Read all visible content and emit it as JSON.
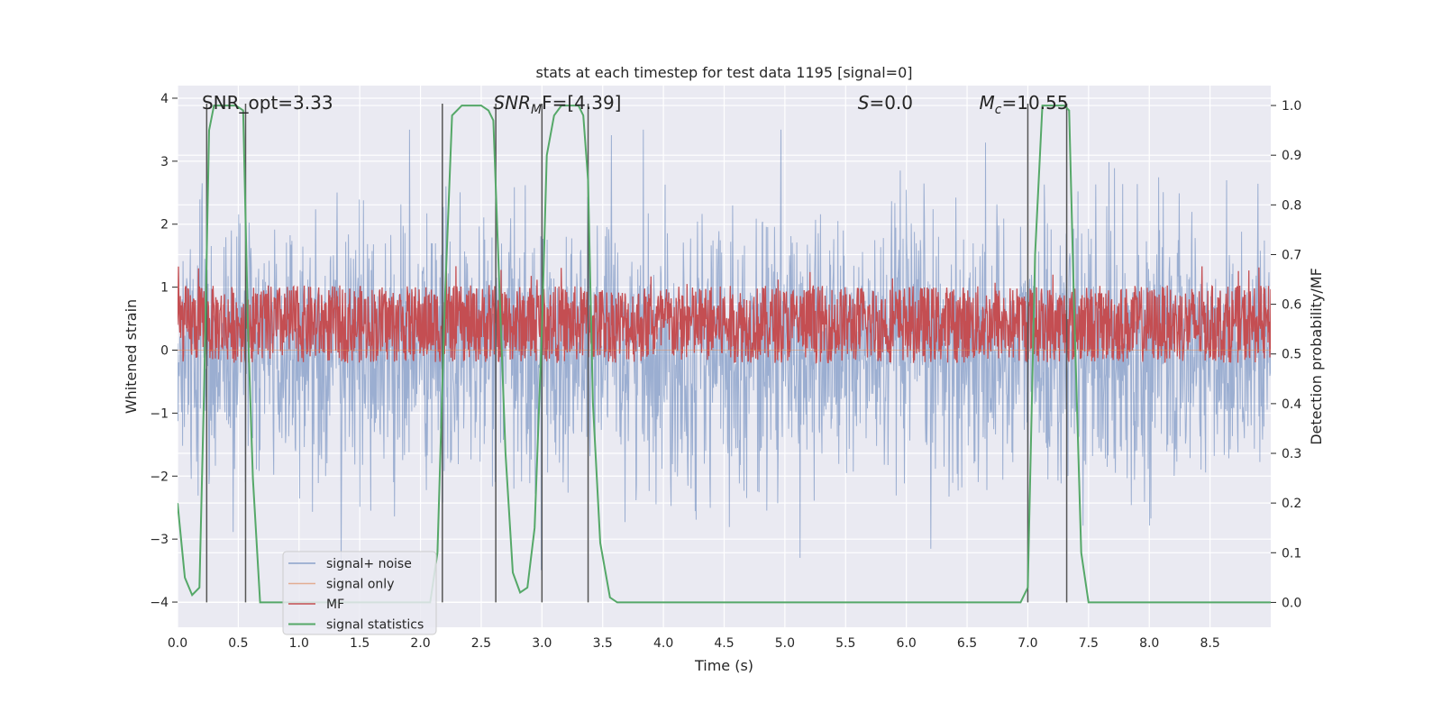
{
  "chart_data": {
    "type": "line",
    "title": "stats at each timestep for test data 1195 [signal=0]",
    "xlabel": "Time (s)",
    "ylabel": "Whitened strain",
    "ylabel_right": "Detection probability/MF",
    "xlim": [
      0.0,
      9.0
    ],
    "ylim": [
      -4.4,
      4.2
    ],
    "ylim_right": [
      -0.05,
      1.04
    ],
    "x_ticks": [
      0.0,
      0.5,
      1.0,
      1.5,
      2.0,
      2.5,
      3.0,
      3.5,
      4.0,
      4.5,
      5.0,
      5.5,
      6.0,
      6.5,
      7.0,
      7.5,
      8.0,
      8.5
    ],
    "x_tick_labels": [
      "0.0",
      "0.5",
      "1.0",
      "1.5",
      "2.0",
      "2.5",
      "3.0",
      "3.5",
      "4.0",
      "4.5",
      "5.0",
      "5.5",
      "6.0",
      "6.5",
      "7.0",
      "7.5",
      "8.0",
      "8.5"
    ],
    "y_ticks": [
      -4,
      -3,
      -2,
      -1,
      0,
      1,
      2,
      3,
      4
    ],
    "y_tick_labels": [
      "−4",
      "−3",
      "−2",
      "−1",
      "0",
      "1",
      "2",
      "3",
      "4"
    ],
    "y_right_ticks": [
      0.0,
      0.1,
      0.2,
      0.3,
      0.4,
      0.5,
      0.6,
      0.7,
      0.8,
      0.9,
      1.0
    ],
    "y_right_tick_labels": [
      "0.0",
      "0.1",
      "0.2",
      "0.3",
      "0.4",
      "0.5",
      "0.6",
      "0.7",
      "0.8",
      "0.9",
      "1.0"
    ],
    "grid": true,
    "legend_position": "lower-left",
    "annotations": [
      {
        "text": "SNR_opt=3.33",
        "x": 0.2
      },
      {
        "text_main": "SNR",
        "text_sub": "M",
        "text_rest": "F=[4.39]",
        "x": 2.6
      },
      {
        "text_main": "S",
        "text_rest": "=0.0",
        "x": 5.6
      },
      {
        "text_main": "M",
        "text_sub": "c",
        "text_rest": "=10.55",
        "x": 6.6
      }
    ],
    "vertical_lines_x": [
      0.24,
      0.56,
      2.18,
      2.62,
      3.0,
      3.38,
      7.0,
      7.32
    ],
    "series": [
      {
        "name": "signal+ noise",
        "color": "#4c72b0",
        "description_range": [
          -3.7,
          3.5
        ],
        "sample_count": 2400
      },
      {
        "name": "signal only",
        "color": "#dd8452",
        "values_constant": 0
      },
      {
        "name": "MF",
        "color": "#c44e52",
        "range_right_axis": [
          0.5,
          0.62
        ],
        "sample_count": 2400
      },
      {
        "name": "signal statistics",
        "color": "#55a868",
        "x": [
          0.0,
          0.06,
          0.12,
          0.18,
          0.22,
          0.26,
          0.3,
          0.36,
          0.42,
          0.48,
          0.54,
          0.58,
          0.62,
          0.68,
          0.75,
          1.0,
          1.5,
          2.0,
          2.08,
          2.14,
          2.2,
          2.26,
          2.34,
          2.5,
          2.56,
          2.6,
          2.64,
          2.7,
          2.76,
          2.82,
          2.88,
          2.94,
          3.0,
          3.04,
          3.1,
          3.16,
          3.3,
          3.34,
          3.38,
          3.42,
          3.48,
          3.56,
          3.62,
          4.0,
          5.0,
          6.0,
          6.8,
          6.94,
          7.0,
          7.06,
          7.12,
          7.3,
          7.34,
          7.38,
          7.44,
          7.5,
          8.0,
          8.5,
          9.0
        ],
        "values": [
          0.2,
          0.05,
          0.015,
          0.03,
          0.45,
          0.95,
          1.0,
          1.0,
          1.0,
          1.0,
          0.99,
          0.55,
          0.25,
          0.0,
          0.0,
          0.0,
          0.0,
          0.0,
          0.0,
          0.1,
          0.6,
          0.98,
          1.0,
          1.0,
          0.99,
          0.97,
          0.7,
          0.3,
          0.06,
          0.02,
          0.03,
          0.15,
          0.55,
          0.9,
          0.98,
          1.0,
          1.0,
          0.98,
          0.85,
          0.4,
          0.12,
          0.01,
          0.0,
          0.0,
          0.0,
          0.0,
          0.0,
          0.0,
          0.03,
          0.7,
          1.0,
          1.0,
          0.99,
          0.6,
          0.1,
          0.0,
          0.0,
          0.0,
          0.0
        ]
      }
    ]
  }
}
